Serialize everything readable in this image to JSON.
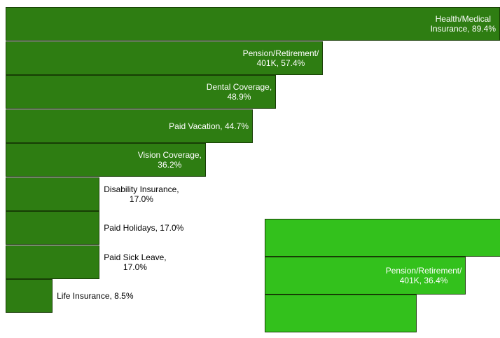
{
  "chart_data": [
    {
      "type": "hbar",
      "color": "#2e7d12",
      "xlim": [
        0,
        89.4
      ],
      "values": [
        89.4,
        57.4,
        48.9,
        44.7,
        36.2,
        17.0,
        17.0,
        17.0,
        8.5
      ],
      "value_labels": [
        "Health/Medical\nInsurance, 89.4%",
        "Pension/Retirement/\n401K, 57.4%",
        "Dental Coverage,\n48.9%",
        "Paid Vacation, 44.7%",
        "Vision Coverage,\n36.2%",
        "Disability Insurance,\n17.0%",
        "Paid Holidays, 17.0%",
        "Paid Sick Leave,\n17.0%",
        "Life Insurance, 8.5%"
      ]
    },
    {
      "type": "hbar",
      "color": "#33c11c",
      "xlim": [
        0,
        89.4
      ],
      "values": [
        45,
        36.4,
        27.5
      ],
      "value_labels": [
        null,
        "Pension/Retirement/\n401K, 36.4%",
        null
      ]
    }
  ]
}
